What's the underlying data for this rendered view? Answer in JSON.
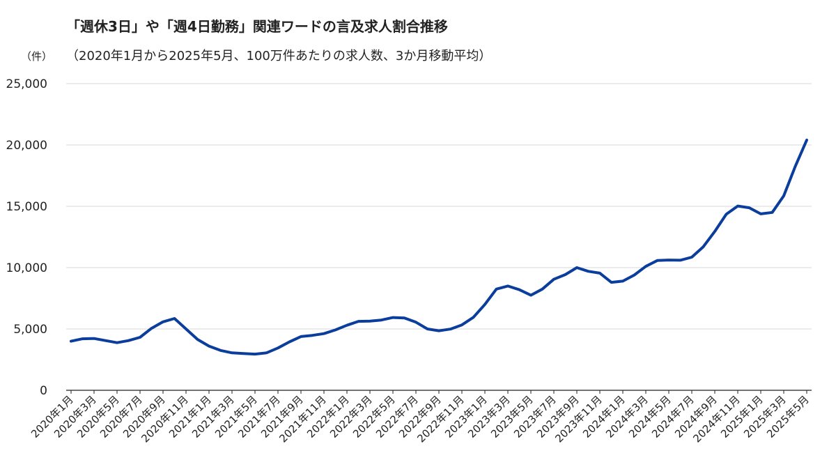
{
  "title": "「週休3日」や「週4日勤務」関連ワードの言及求人割合推移",
  "subtitle": "（2020年1月から2025年5月、100万件あたりの求人数、3か月移動平均）",
  "unit": "（件）",
  "colors": {
    "line": "#0b3d9c",
    "grid": "#d9d9d9",
    "axis": "#222222"
  },
  "chart_data": {
    "type": "line",
    "ylim": [
      0,
      25000
    ],
    "y_ticks": [
      0,
      5000,
      10000,
      15000,
      20000,
      25000
    ],
    "y_tick_labels": [
      "0",
      "5,000",
      "10,000",
      "15,000",
      "20,000",
      "25,000"
    ],
    "grid": true,
    "x": [
      "2020年1月",
      "2020年2月",
      "2020年3月",
      "2020年4月",
      "2020年5月",
      "2020年6月",
      "2020年7月",
      "2020年8月",
      "2020年9月",
      "2020年10月",
      "2020年11月",
      "2020年12月",
      "2021年1月",
      "2021年2月",
      "2021年3月",
      "2021年4月",
      "2021年5月",
      "2021年6月",
      "2021年7月",
      "2021年8月",
      "2021年9月",
      "2021年10月",
      "2021年11月",
      "2021年12月",
      "2022年1月",
      "2022年2月",
      "2022年3月",
      "2022年4月",
      "2022年5月",
      "2022年6月",
      "2022年7月",
      "2022年8月",
      "2022年9月",
      "2022年10月",
      "2022年11月",
      "2022年12月",
      "2023年1月",
      "2023年2月",
      "2023年3月",
      "2023年4月",
      "2023年5月",
      "2023年6月",
      "2023年7月",
      "2023年8月",
      "2023年9月",
      "2023年10月",
      "2023年11月",
      "2023年12月",
      "2024年1月",
      "2024年2月",
      "2024年3月",
      "2024年4月",
      "2024年5月",
      "2024年6月",
      "2024年7月",
      "2024年8月",
      "2024年9月",
      "2024年10月",
      "2024年11月",
      "2024年12月",
      "2025年1月",
      "2025年2月",
      "2025年3月",
      "2025年4月",
      "2025年5月"
    ],
    "x_tick_labels": [
      "2020年1月",
      "2020年3月",
      "2020年5月",
      "2020年7月",
      "2020年9月",
      "2020年11月",
      "2021年1月",
      "2021年3月",
      "2021年5月",
      "2021年7月",
      "2021年9月",
      "2021年11月",
      "2022年1月",
      "2022年3月",
      "2022年5月",
      "2022年7月",
      "2022年9月",
      "2022年11月",
      "2023年1月",
      "2023年3月",
      "2023年5月",
      "2023年7月",
      "2023年9月",
      "2023年11月",
      "2024年1月",
      "2024年3月",
      "2024年5月",
      "2024年7月",
      "2024年9月",
      "2024年11月",
      "2025年1月",
      "2025年3月",
      "2025年5月"
    ],
    "series": [
      {
        "values": [
          4000,
          4200,
          4220,
          4050,
          3880,
          4050,
          4320,
          5050,
          5580,
          5850,
          5000,
          4150,
          3600,
          3250,
          3050,
          3000,
          2950,
          3050,
          3450,
          3950,
          4380,
          4480,
          4620,
          4920,
          5300,
          5620,
          5640,
          5730,
          5930,
          5900,
          5550,
          5000,
          4850,
          4990,
          5330,
          5950,
          7000,
          8250,
          8500,
          8200,
          7750,
          8250,
          9050,
          9430,
          10000,
          9700,
          9550,
          8800,
          8900,
          9400,
          10100,
          10580,
          10620,
          10600,
          10850,
          11700,
          12950,
          14350,
          15020,
          14880,
          14380,
          14500,
          15850,
          18250,
          20400
        ]
      }
    ]
  }
}
